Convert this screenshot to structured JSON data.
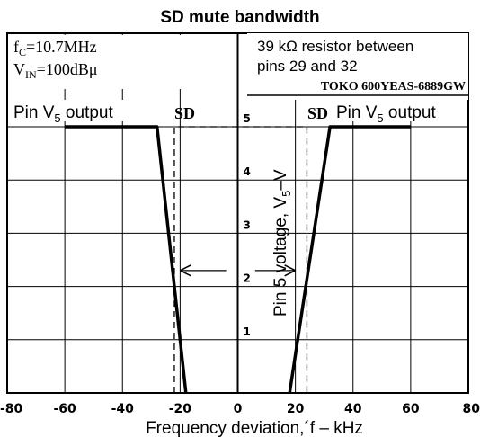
{
  "chart_data": {
    "type": "line",
    "title": "SD mute bandwidth",
    "xlabel": "Frequency deviation,´f – kHz",
    "ylabel": "Pin 5 voltage, V5–V",
    "xlim": [
      -80,
      80
    ],
    "ylim": [
      0,
      5
    ],
    "x_ticks": [
      "-80",
      "-60",
      "-40",
      "-20",
      "0",
      "20",
      "40",
      "60",
      "80"
    ],
    "y_ticks": [
      "1",
      "2",
      "3",
      "4",
      "5"
    ],
    "grid": true,
    "conditions": {
      "fc_main": "f",
      "fc_sub": "C",
      "fc_value": "=10.7MHz",
      "vin_main": "V",
      "vin_sub": "IN",
      "vin_value": "=100dBμ"
    },
    "note": {
      "line1": "39 kΩ resistor between",
      "line2": "pins 29 and 32",
      "part": "TOKO 600YEAS-6889GW"
    },
    "labels": {
      "left_output": "Pin V5 output",
      "left_output_main": "Pin V",
      "left_output_sub": "5",
      "left_output_tail": " output",
      "right_output_main": "Pin V",
      "right_output_sub": "5",
      "right_output_tail": " output",
      "sd_left": "SD",
      "sd_right": "SD",
      "ylabel_main": "Pin 5 voltage,  V",
      "ylabel_sub": "5",
      "ylabel_tail": "–V"
    },
    "series": [
      {
        "x": [
          -60,
          -28,
          -18
        ],
        "y": [
          5,
          5,
          0
        ]
      },
      {
        "x": [
          18,
          32,
          60
        ],
        "y": [
          0,
          5,
          5
        ]
      }
    ],
    "sd_window": {
      "x": [
        -22,
        24
      ],
      "y": [
        0,
        5
      ]
    },
    "bandwidth_arrow": {
      "x": [
        -20,
        20
      ],
      "y": 2.3
    },
    "colors": {
      "ink": "#000000",
      "background": "#ffffff"
    }
  }
}
